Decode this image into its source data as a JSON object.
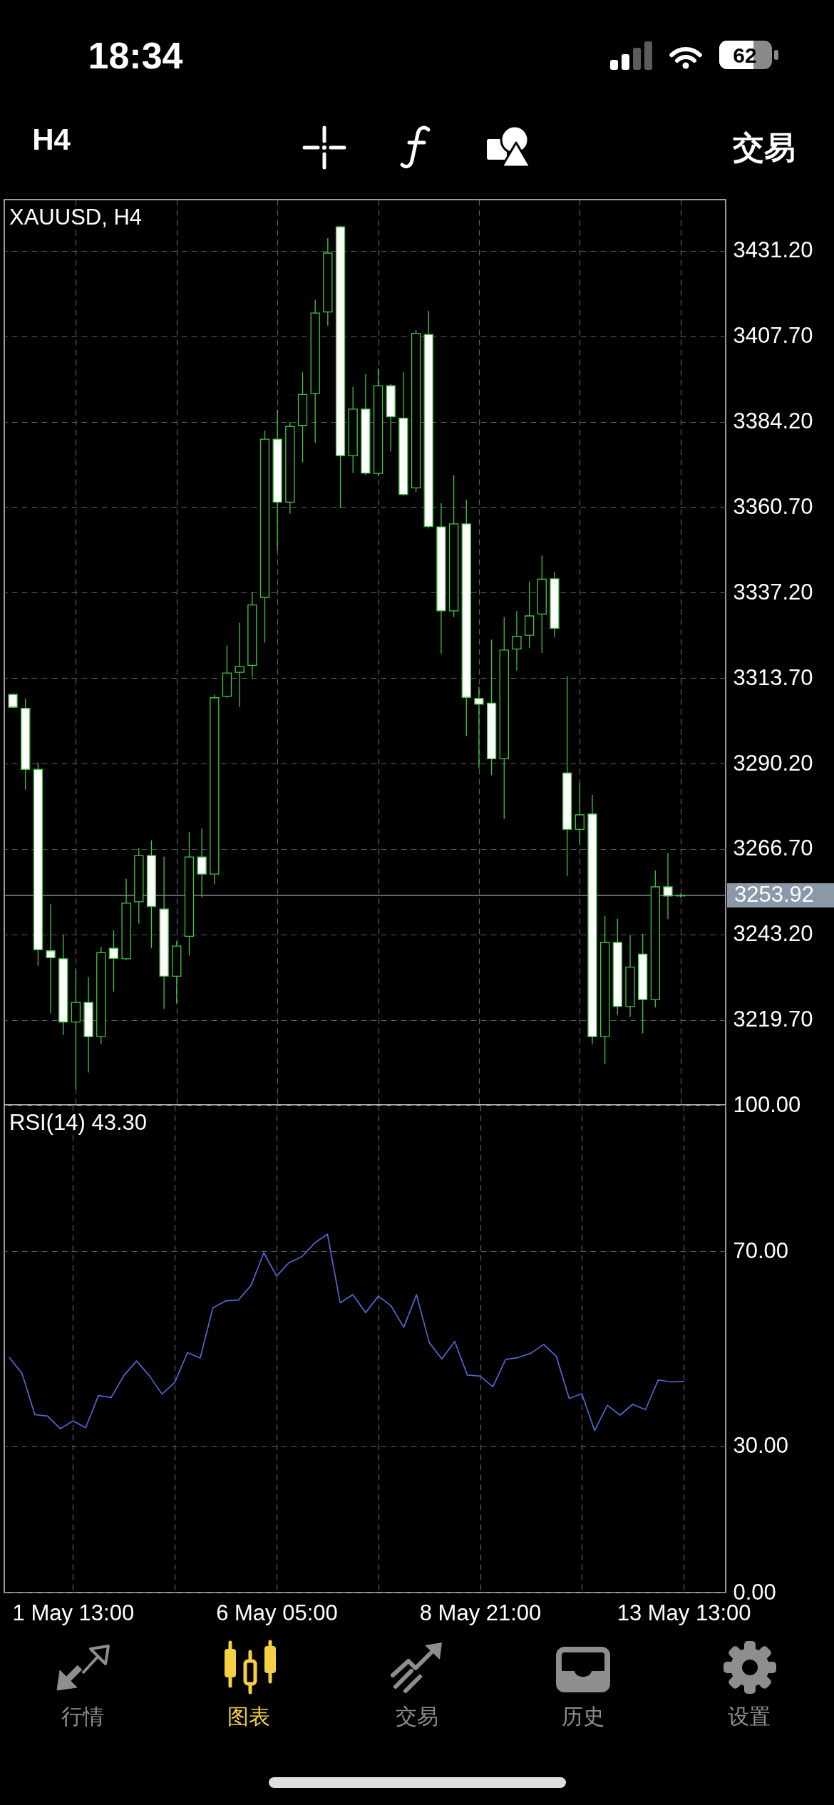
{
  "chart_data": [
    {
      "type": "candlestick",
      "title": "XAUUSD, H4",
      "color": "#42c742",
      "categories": [
        null,
        null,
        null,
        null,
        null,
        "1 May 13:00",
        null,
        null,
        null,
        null,
        null,
        null,
        null,
        null,
        null,
        null,
        null,
        null,
        null,
        null,
        null,
        "6 May 05:00",
        null,
        null,
        null,
        null,
        null,
        null,
        null,
        null,
        null,
        null,
        null,
        null,
        null,
        null,
        null,
        "8 May 21:00",
        null,
        null,
        null,
        null,
        null,
        null,
        null,
        null,
        null,
        null,
        null,
        null,
        null,
        null,
        null,
        "13 May 13:00"
      ],
      "ohlc": [
        [
          3309.2,
          3309.5,
          3305.5,
          3305.7
        ],
        [
          3305.4,
          3308.1,
          3283.0,
          3288.6
        ],
        [
          3288.6,
          3290.5,
          3234.6,
          3239.0
        ],
        [
          3238.7,
          3251.5,
          3221.5,
          3236.8
        ],
        [
          3236.5,
          3243.2,
          3215.5,
          3219.1
        ],
        [
          3219.1,
          3233.8,
          3200.7,
          3224.5
        ],
        [
          3224.5,
          3231.5,
          3205.2,
          3215.1
        ],
        [
          3215.1,
          3239.8,
          3213.0,
          3238.2
        ],
        [
          3239.4,
          3244.3,
          3227.5,
          3236.6
        ],
        [
          3236.5,
          3258.5,
          3236.2,
          3251.8
        ],
        [
          3252.2,
          3267.0,
          3246.2,
          3264.9
        ],
        [
          3264.9,
          3269.1,
          3239.4,
          3250.9
        ],
        [
          3250.2,
          3264.6,
          3222.7,
          3231.7
        ],
        [
          3231.7,
          3241.4,
          3224.2,
          3240.0
        ],
        [
          3242.7,
          3271.3,
          3237.4,
          3264.5
        ],
        [
          3264.5,
          3272.3,
          3253.4,
          3259.8
        ],
        [
          3259.8,
          3309.2,
          3257.0,
          3308.3
        ],
        [
          3308.7,
          3322.7,
          3308.3,
          3315.1
        ],
        [
          3315.3,
          3328.9,
          3305.7,
          3316.9
        ],
        [
          3317.2,
          3337.4,
          3313.9,
          3333.8
        ],
        [
          3335.9,
          3381.8,
          3323.5,
          3379.4
        ],
        [
          3379.4,
          3387.4,
          3348.9,
          3362.1
        ],
        [
          3362.1,
          3384.2,
          3358.9,
          3382.9
        ],
        [
          3383.2,
          3397.8,
          3373.0,
          3391.7
        ],
        [
          3392.0,
          3417.8,
          3378.4,
          3414.1
        ],
        [
          3414.4,
          3434.7,
          3410.6,
          3430.6
        ],
        [
          3437.8,
          3438.1,
          3360.4,
          3374.9
        ],
        [
          3374.9,
          3393.8,
          3370.1,
          3387.7
        ],
        [
          3387.7,
          3397.3,
          3369.5,
          3370.1
        ],
        [
          3370.0,
          3398.9,
          3369.2,
          3394.1
        ],
        [
          3394.1,
          3394.6,
          3376.0,
          3385.6
        ],
        [
          3385.2,
          3397.8,
          3363.9,
          3364.2
        ],
        [
          3366.0,
          3409.5,
          3364.9,
          3408.5
        ],
        [
          3408.2,
          3414.7,
          3354.8,
          3355.4
        ],
        [
          3355.3,
          3361.8,
          3320.4,
          3332.2
        ],
        [
          3332.2,
          3369.5,
          3330.5,
          3356.1
        ],
        [
          3356.1,
          3362.8,
          3297.7,
          3308.4
        ],
        [
          3308.1,
          3311.3,
          3288.9,
          3306.5
        ],
        [
          3306.8,
          3324.3,
          3287.0,
          3291.5
        ],
        [
          3291.5,
          3330.5,
          3274.9,
          3321.4
        ],
        [
          3321.7,
          3332.1,
          3315.8,
          3325.2
        ],
        [
          3325.5,
          3340.2,
          3321.9,
          3330.8
        ],
        [
          3331.3,
          3347.4,
          3320.6,
          3340.9
        ],
        [
          3341.0,
          3343.0,
          3325.0,
          3327.4
        ],
        [
          3287.6,
          3314.2,
          3259.3,
          3272.1
        ],
        [
          3272.1,
          3284.9,
          3267.8,
          3276.1
        ],
        [
          3276.3,
          3281.6,
          3213.1,
          3215.1
        ],
        [
          3215.1,
          3248.3,
          3207.6,
          3241.0
        ],
        [
          3241.0,
          3247.5,
          3221.1,
          3223.4
        ],
        [
          3223.4,
          3243.0,
          3220.5,
          3234.2
        ],
        [
          3237.8,
          3243.4,
          3216.0,
          3225.3
        ],
        [
          3225.3,
          3260.8,
          3223.1,
          3256.3
        ],
        [
          3256.3,
          3265.6,
          3247.4,
          3253.8
        ],
        [
          3253.8,
          3254.4,
          3253.3,
          3253.92
        ]
      ],
      "ylim": [
        3196.3,
        3445.3
      ],
      "yticks": [
        {
          "value": 3219.7,
          "label": "3219.70"
        },
        {
          "value": 3243.2,
          "label": "3243.20"
        },
        {
          "value": 3266.7,
          "label": "3266.70"
        },
        {
          "value": 3290.2,
          "label": "3290.20"
        },
        {
          "value": 3313.7,
          "label": "3313.70"
        },
        {
          "value": 3337.2,
          "label": "3337.20"
        },
        {
          "value": 3360.7,
          "label": "3360.70"
        },
        {
          "value": 3384.2,
          "label": "3384.20"
        },
        {
          "value": 3407.7,
          "label": "3407.70"
        },
        {
          "value": 3431.2,
          "label": "3431.20"
        }
      ],
      "grid": true,
      "tick_labels": "y",
      "ref_lines": [
        {
          "axis": "y",
          "value": 3253.92,
          "label": "3253.92",
          "color": "#8a98a8"
        }
      ],
      "annotations": [
        "18:34",
        "62",
        "H4",
        "交易",
        "行情",
        "图表",
        "交易",
        "历史",
        "设置"
      ]
    },
    {
      "type": "line",
      "title": "RSI(14) 43.30",
      "categories": [
        null,
        null,
        null,
        null,
        null,
        "1 May 13:00",
        null,
        null,
        null,
        null,
        null,
        null,
        null,
        null,
        null,
        null,
        null,
        null,
        null,
        null,
        null,
        "6 May 05:00",
        null,
        null,
        null,
        null,
        null,
        null,
        null,
        null,
        null,
        null,
        null,
        null,
        null,
        null,
        null,
        "8 May 21:00",
        null,
        null,
        null,
        null,
        null,
        null,
        null,
        null,
        null,
        null,
        null,
        null,
        null,
        null,
        null,
        "13 May 13:00"
      ],
      "series": [
        {
          "color": "#5068d2",
          "values": [
            48.2,
            44.9,
            36.5,
            36.2,
            33.6,
            35.2,
            33.8,
            40.4,
            40.0,
            44.5,
            47.5,
            44.5,
            40.7,
            43.1,
            49.2,
            48.1,
            58.4,
            59.8,
            60.0,
            63.0,
            69.7,
            64.9,
            67.7,
            68.9,
            71.7,
            73.5,
            59.4,
            61.1,
            57.4,
            60.8,
            58.8,
            54.4,
            61.1,
            51.3,
            47.9,
            51.5,
            44.6,
            44.4,
            42.2,
            47.8,
            48.2,
            49.1,
            50.9,
            48.4,
            39.8,
            40.8,
            33.2,
            38.4,
            36.4,
            38.6,
            37.5,
            43.6,
            43.2,
            43.3
          ]
        }
      ],
      "ylim": [
        0,
        100
      ],
      "yticks": [
        {
          "value": 0,
          "label": "0.00"
        },
        {
          "value": 30,
          "label": "30.00"
        },
        {
          "value": 70,
          "label": "70.00"
        },
        {
          "value": 100,
          "label": "100.00"
        }
      ],
      "grid": true
    }
  ]
}
